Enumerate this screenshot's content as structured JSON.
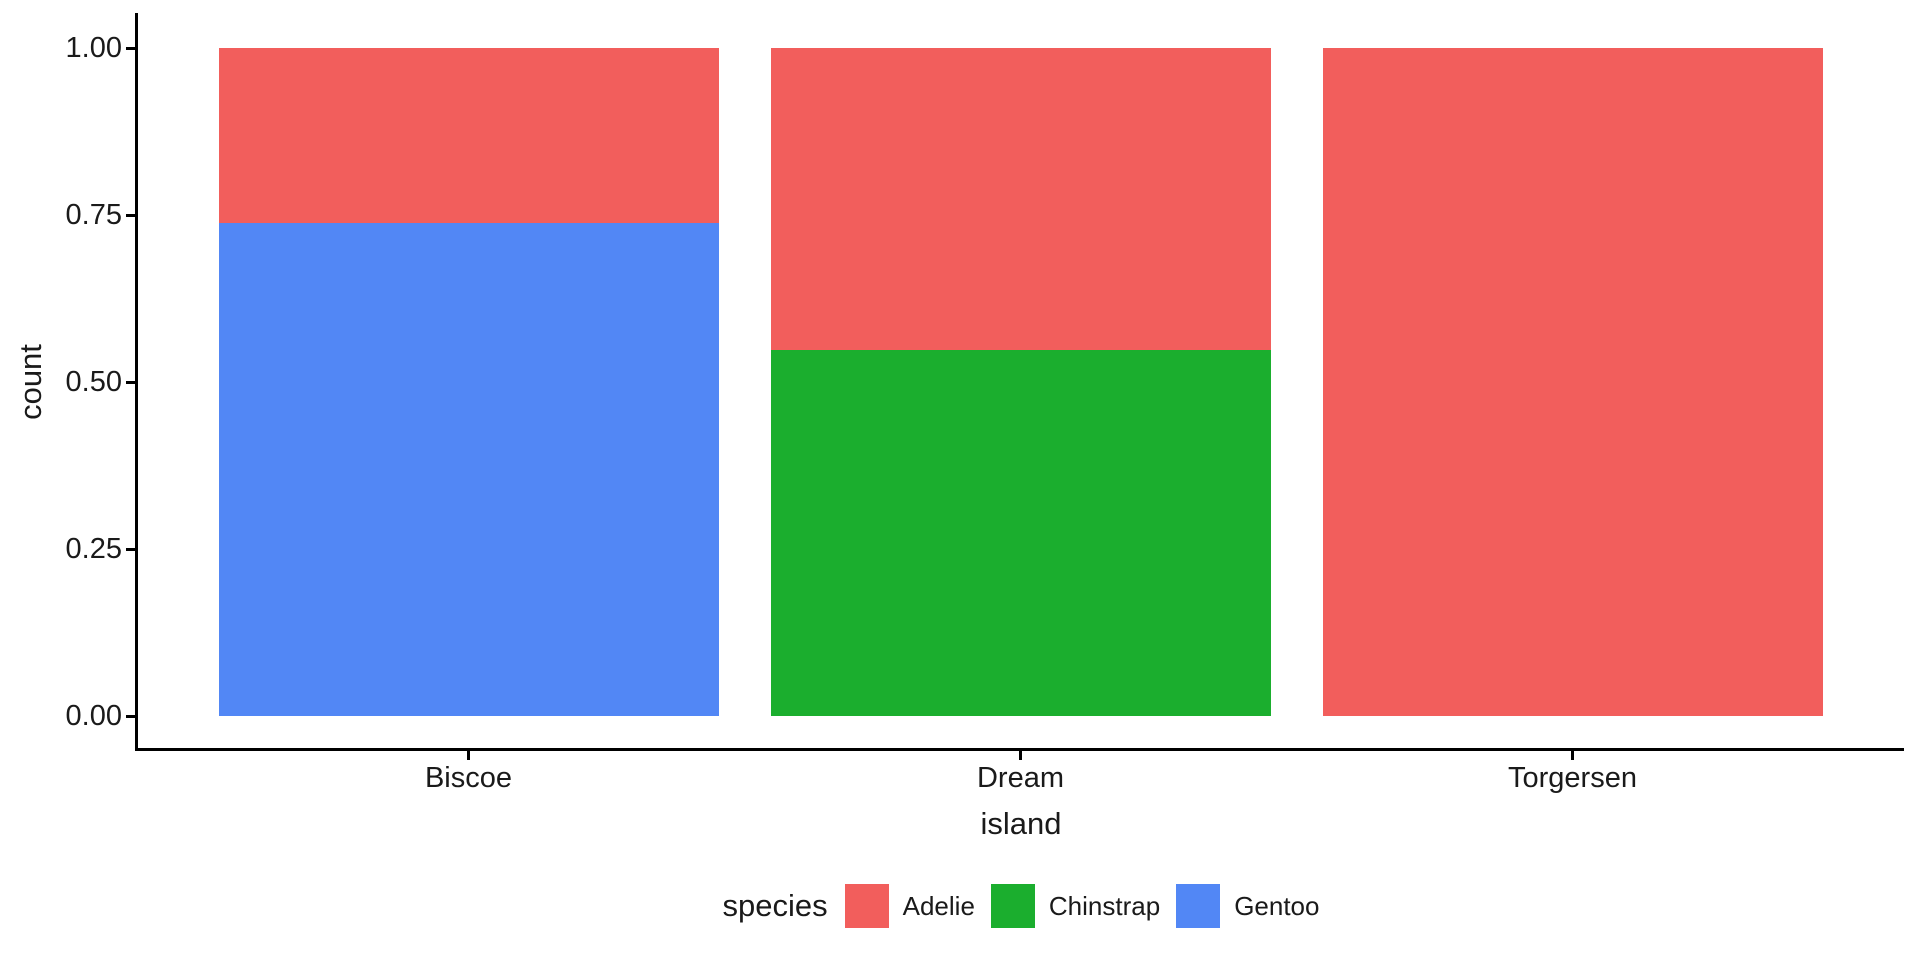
{
  "chart_data": {
    "type": "bar",
    "subtype": "stacked-fill",
    "orientation": "vertical",
    "title": "",
    "xlabel": "island",
    "ylabel": "count",
    "categories": [
      "Biscoe",
      "Dream",
      "Torgersen"
    ],
    "series": [
      {
        "name": "Adelie",
        "color": "#F25E5C",
        "values": [
          0.262,
          0.452,
          1.0
        ]
      },
      {
        "name": "Chinstrap",
        "color": "#1BAE2E",
        "values": [
          0.0,
          0.548,
          0.0
        ]
      },
      {
        "name": "Gentoo",
        "color": "#5287F5",
        "values": [
          0.738,
          0.0,
          0.0
        ]
      }
    ],
    "stack_order_top_to_bottom": [
      "Adelie",
      "Chinstrap",
      "Gentoo"
    ],
    "ylim": [
      0,
      1
    ],
    "y_ticks": [
      {
        "value": 0.0,
        "label": "0.00"
      },
      {
        "value": 0.25,
        "label": "0.25"
      },
      {
        "value": 0.5,
        "label": "0.50"
      },
      {
        "value": 0.75,
        "label": "0.75"
      },
      {
        "value": 1.0,
        "label": "1.00"
      }
    ],
    "grid": "off",
    "background": "#ffffff",
    "axis_color": "#000000",
    "legend": {
      "title": "species",
      "position": "bottom",
      "entries": [
        "Adelie",
        "Chinstrap",
        "Gentoo"
      ]
    }
  }
}
